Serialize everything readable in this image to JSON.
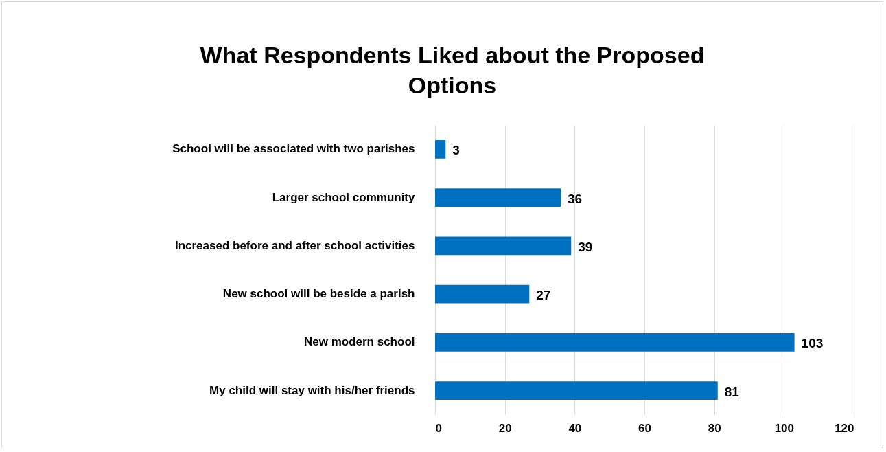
{
  "chart_data": {
    "type": "bar",
    "orientation": "horizontal",
    "title": "What Respondents Liked about the Proposed Options",
    "categories": [
      "School will be associated with two parishes",
      "Larger school community",
      "Increased before and after school activities",
      "New school will be beside a parish",
      "New modern school",
      "My child will stay with his/her friends"
    ],
    "values": [
      3,
      36,
      39,
      27,
      103,
      81
    ],
    "color": "#0070c0",
    "data_labels": true,
    "xlim": [
      0,
      120
    ],
    "xticks": [
      0,
      20,
      40,
      60,
      80,
      100,
      120
    ],
    "grid": "x"
  }
}
